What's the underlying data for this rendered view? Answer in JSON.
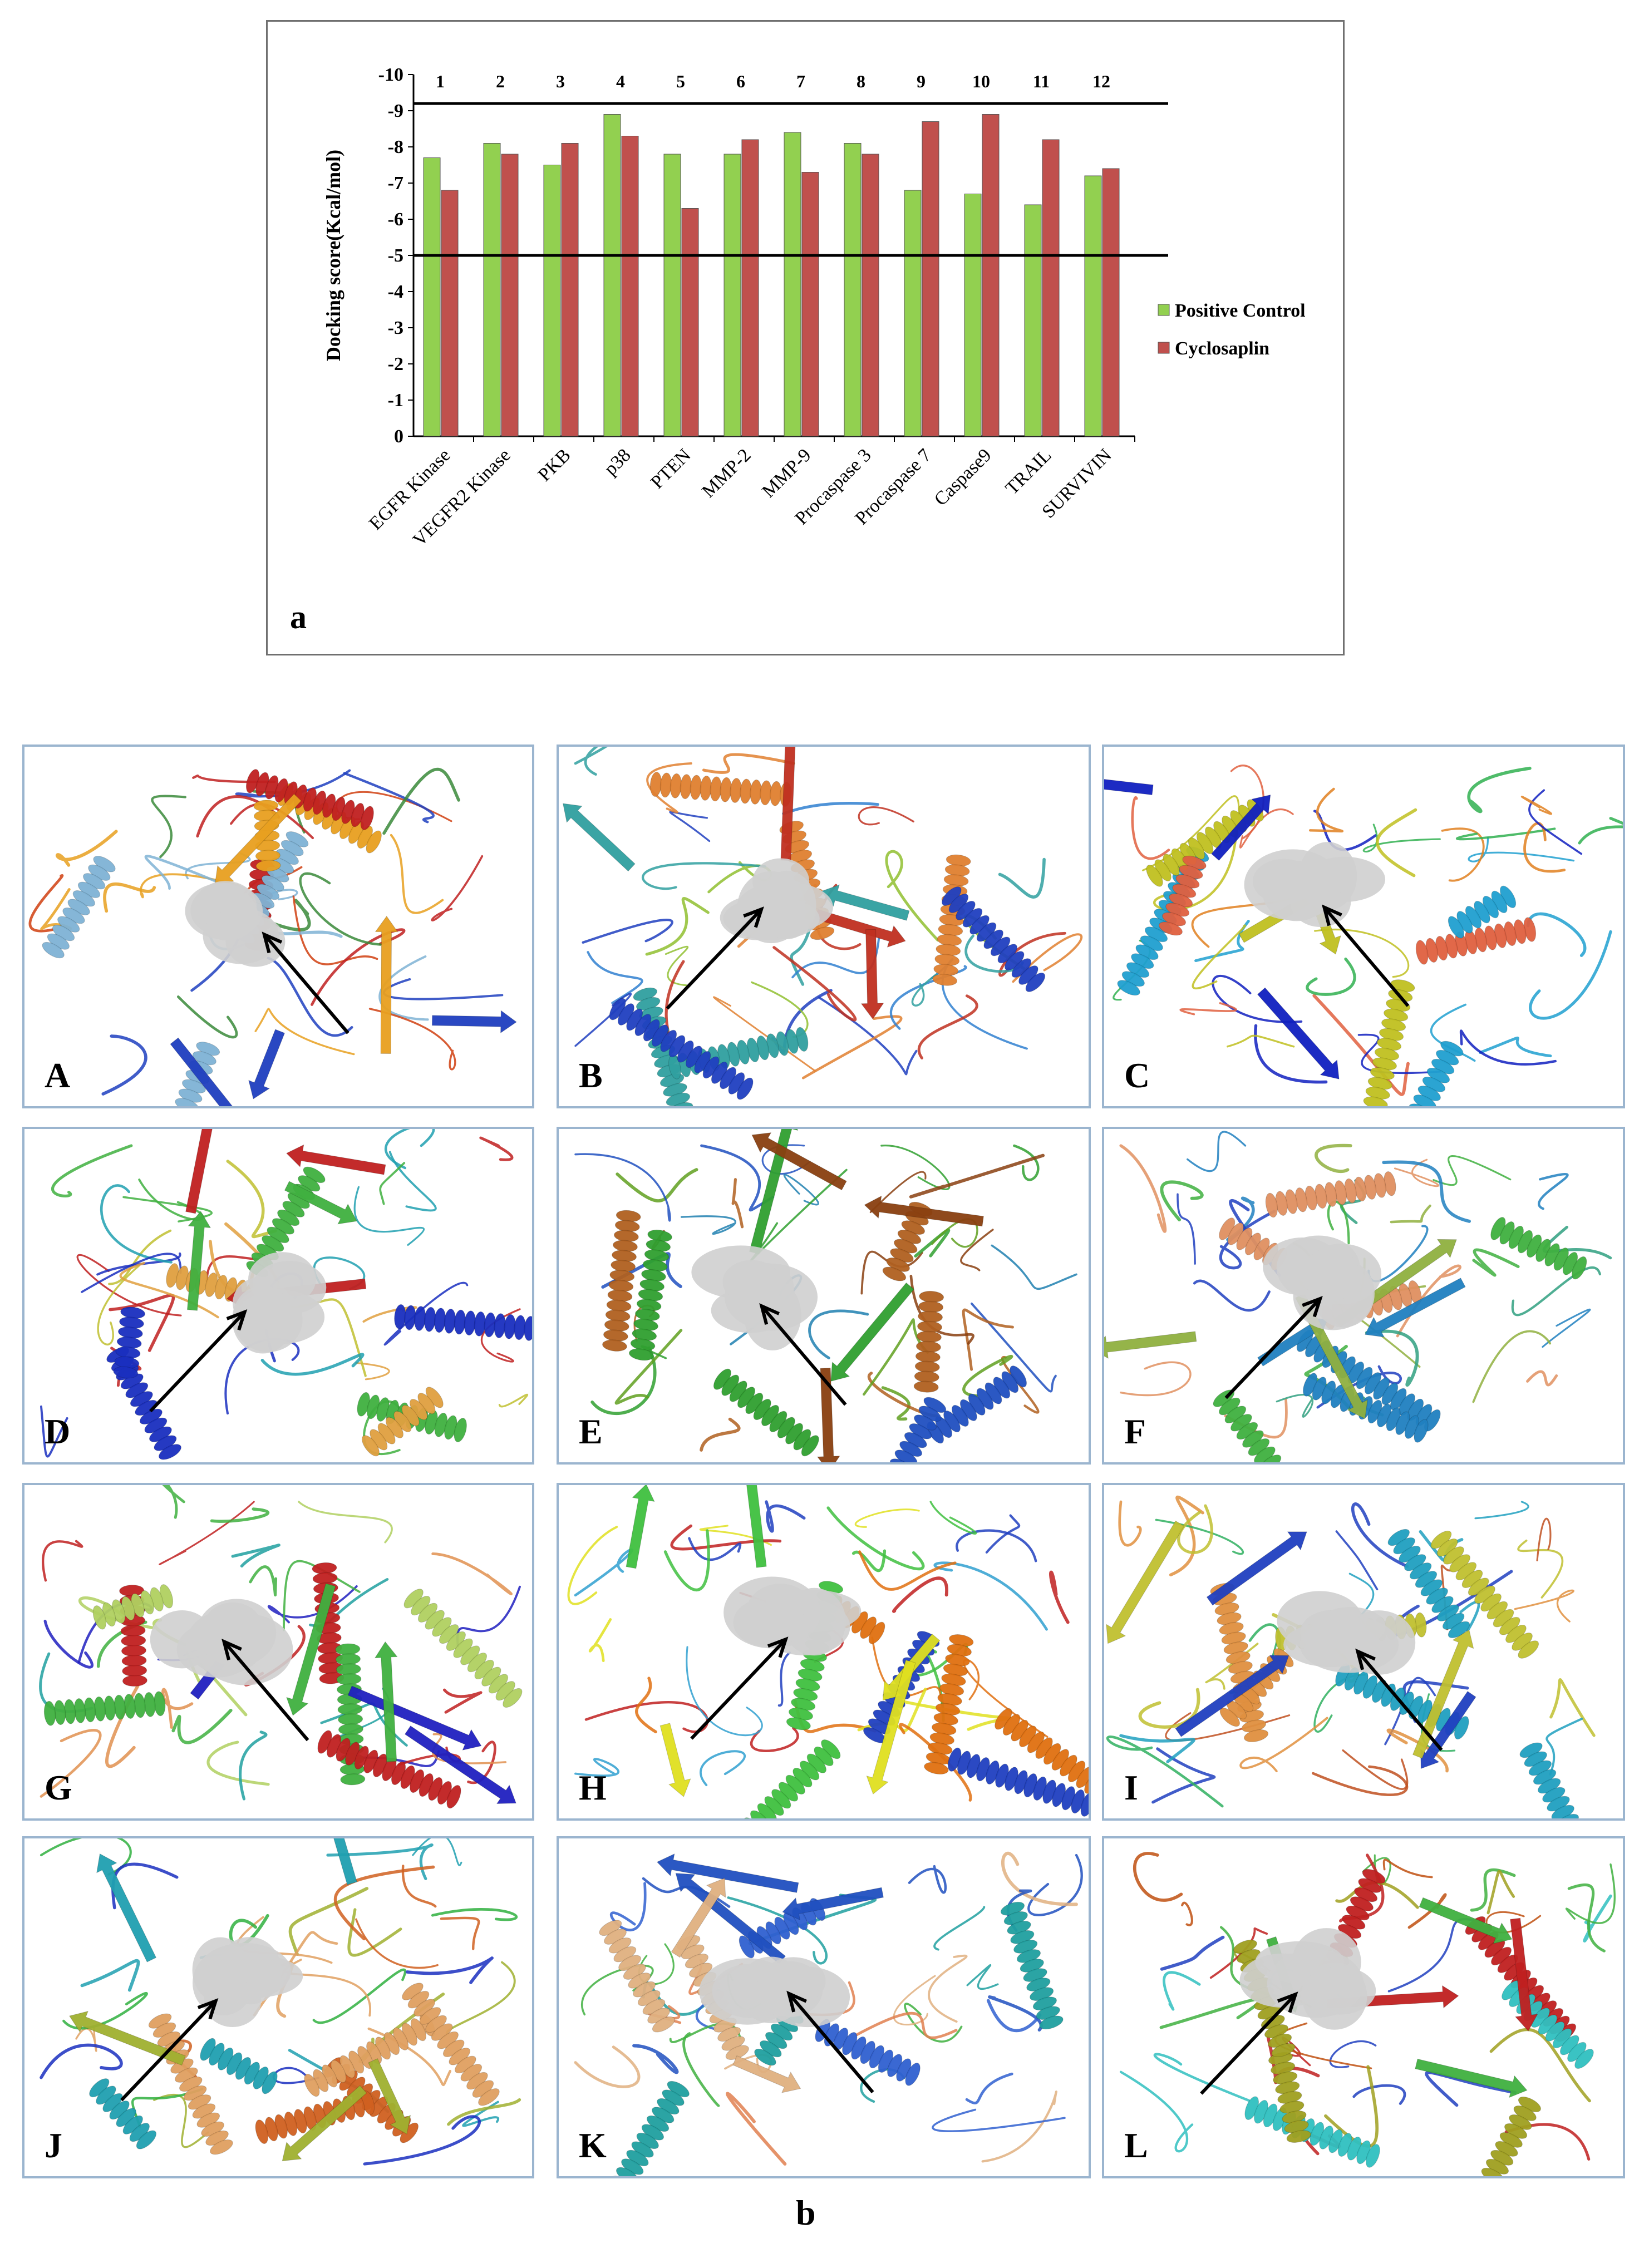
{
  "chart_data": {
    "type": "bar",
    "title": "",
    "panel_label": "a",
    "xlabel": "",
    "ylabel": "Docking score(Kcal/mol)",
    "ylim": [
      0,
      -10
    ],
    "yticks": [
      "0",
      "-1",
      "-2",
      "-3",
      "-4",
      "-5",
      "-6",
      "-7",
      "-8",
      "-9",
      "-10"
    ],
    "categories": [
      "EGFR Kinase",
      "VEGFR2 Kinase",
      "PKB",
      "p38",
      "PTEN",
      "MMP-2",
      "MMP-9",
      "Procaspase 3",
      "Procaspase 7",
      "Caspase9",
      "TRAIL",
      "SURVIVIN"
    ],
    "index_labels": [
      "1",
      "2",
      "3",
      "4",
      "5",
      "6",
      "7",
      "8",
      "9",
      "10",
      "11",
      "12"
    ],
    "series": [
      {
        "name": "Positive Control",
        "color": "#92d050",
        "values": [
          -7.7,
          -8.1,
          -7.5,
          -8.9,
          -7.8,
          -7.8,
          -8.4,
          -8.1,
          -6.8,
          -6.7,
          -6.4,
          -7.2
        ]
      },
      {
        "name": "Cyclosaplin",
        "color": "#c0504d",
        "values": [
          -6.8,
          -7.8,
          -8.1,
          -8.3,
          -6.3,
          -8.2,
          -7.3,
          -7.8,
          -8.7,
          -8.9,
          -8.2,
          -7.4
        ]
      }
    ],
    "reference_lines": [
      -5,
      -9.2
    ],
    "legend_position": "right",
    "grid": false
  },
  "figure_b": {
    "label": "b",
    "panels": [
      {
        "label": "A",
        "palette": [
          "#1f3fbf",
          "#7fb3d5",
          "#3a8a3a",
          "#e8a020",
          "#d04010",
          "#c02020"
        ]
      },
      {
        "label": "B",
        "palette": [
          "#c03020",
          "#e08030",
          "#90c030",
          "#30a0a0",
          "#3080d0",
          "#2040c0"
        ]
      },
      {
        "label": "C",
        "palette": [
          "#1020c0",
          "#20a0d0",
          "#30b050",
          "#c0c020",
          "#e08020",
          "#e06040"
        ]
      },
      {
        "label": "D",
        "palette": [
          "#c02020",
          "#1a2fbf",
          "#20a0b0",
          "#40b040",
          "#c0c030",
          "#e0a040"
        ]
      },
      {
        "label": "E",
        "palette": [
          "#8a4010",
          "#b06020",
          "#60a020",
          "#30a030",
          "#2080b0",
          "#2050c0"
        ]
      },
      {
        "label": "F",
        "palette": [
          "#90b040",
          "#e09060",
          "#30a080",
          "#2080c0",
          "#2040c0",
          "#40b040"
        ]
      },
      {
        "label": "G",
        "palette": [
          "#2020c0",
          "#c02020",
          "#20a0a0",
          "#40b040",
          "#e09050",
          "#b0d060"
        ]
      },
      {
        "label": "H",
        "palette": [
          "#e0e020",
          "#e07010",
          "#c02020",
          "#40c040",
          "#30a0d0",
          "#2040c0"
        ]
      },
      {
        "label": "I",
        "palette": [
          "#2040c0",
          "#20a0c0",
          "#30b060",
          "#c0c030",
          "#c05020",
          "#e09040"
        ]
      },
      {
        "label": "J",
        "palette": [
          "#a0b030",
          "#e0a060",
          "#30b040",
          "#20a0b0",
          "#1a2fbf",
          "#d06020"
        ]
      },
      {
        "label": "K",
        "palette": [
          "#2050c0",
          "#20a0a0",
          "#40b040",
          "#e0b080",
          "#e08050",
          "#3060d0"
        ]
      },
      {
        "label": "L",
        "palette": [
          "#40b040",
          "#a0a020",
          "#c05010",
          "#c02020",
          "#2040c0",
          "#30c0c0"
        ]
      }
    ]
  }
}
